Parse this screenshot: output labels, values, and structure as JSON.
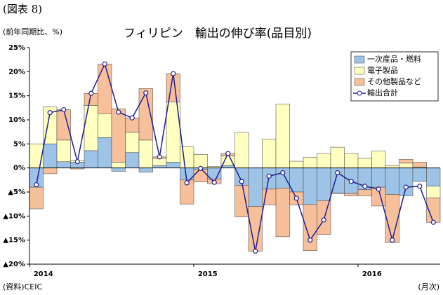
{
  "page_label": "(図表 8)",
  "source": "(資料)CEIC",
  "frequency_label": "(月次)",
  "chart_data": {
    "type": "stacked_bar_line",
    "title": "フィリピン　輸出の伸び率(品目別)",
    "y_axis_label": "(前年同期比、%)",
    "categories": [
      "2014",
      null,
      null,
      null,
      null,
      null,
      null,
      null,
      null,
      null,
      null,
      null,
      "2015",
      null,
      null,
      null,
      null,
      null,
      null,
      null,
      null,
      null,
      null,
      null,
      "2016",
      null,
      null,
      null,
      null,
      null
    ],
    "series": [
      {
        "name": "一次産品・燃料",
        "color": "#9dc3e6",
        "kind": "bar",
        "values": [
          -4,
          5,
          1.3,
          1.2,
          3.6,
          6.3,
          -0.7,
          3.2,
          -0.9,
          0.5,
          1.2,
          -2.5,
          -0.3,
          -2.3,
          0.5,
          -3.6,
          -8,
          -4.4,
          -4.2,
          -5,
          -7.6,
          -6.8,
          -5.2,
          -5.3,
          -4.5,
          -4,
          -5.5,
          -5.8,
          -2.8,
          -3.8
        ]
      },
      {
        "name": "電子製品",
        "color": "#ffffc0",
        "kind": "bar",
        "values": [
          5,
          7.7,
          4.5,
          0.3,
          9.4,
          5,
          1.2,
          4.2,
          5.8,
          1.5,
          12.5,
          4.4,
          2.8,
          0.3,
          2,
          7.4,
          0,
          6,
          13.3,
          1.4,
          2.2,
          3,
          4.3,
          3,
          2,
          3.5,
          0.5,
          1,
          0.2,
          -2.4
        ]
      },
      {
        "name": "その他製品など",
        "color": "#f8c09a",
        "kind": "bar",
        "values": [
          -4.5,
          -1.2,
          6.3,
          -0.2,
          2.5,
          10.3,
          11.1,
          3,
          10.7,
          0.3,
          5.9,
          -5,
          -2.6,
          -1,
          0.5,
          -6.6,
          -9.3,
          -3.3,
          -10.1,
          -2.7,
          -9.6,
          -7,
          -0.1,
          -0.5,
          -1.3,
          -3.9,
          -10,
          0.8,
          1,
          -5.1
        ]
      },
      {
        "name": "輸出合計",
        "color": "#1f1f8f",
        "kind": "line",
        "values": [
          -3.5,
          11.5,
          12.1,
          1.3,
          15.5,
          21.6,
          11.6,
          10.4,
          15.6,
          2.3,
          19.6,
          -3.1,
          -0.1,
          -3,
          3,
          -2.8,
          -17.3,
          -1.7,
          -1,
          -6.3,
          -15,
          -10.8,
          -1,
          -2.8,
          -3.8,
          -4.4,
          -15,
          -4,
          -3.8,
          -11.3
        ]
      }
    ],
    "ylim": [
      -20,
      25
    ],
    "yticks": [
      {
        "value": -20,
        "label": "▲20%"
      },
      {
        "value": -15,
        "label": "▲15%"
      },
      {
        "value": -10,
        "label": "▲10%"
      },
      {
        "value": -5,
        "label": "▲5%"
      },
      {
        "value": 0,
        "label": "0%"
      },
      {
        "value": 5,
        "label": "5%"
      },
      {
        "value": 10,
        "label": "10%"
      },
      {
        "value": 15,
        "label": "15%"
      },
      {
        "value": 20,
        "label": "20%"
      },
      {
        "value": 25,
        "label": "25%"
      }
    ],
    "grid": false,
    "legend": "top-right"
  }
}
